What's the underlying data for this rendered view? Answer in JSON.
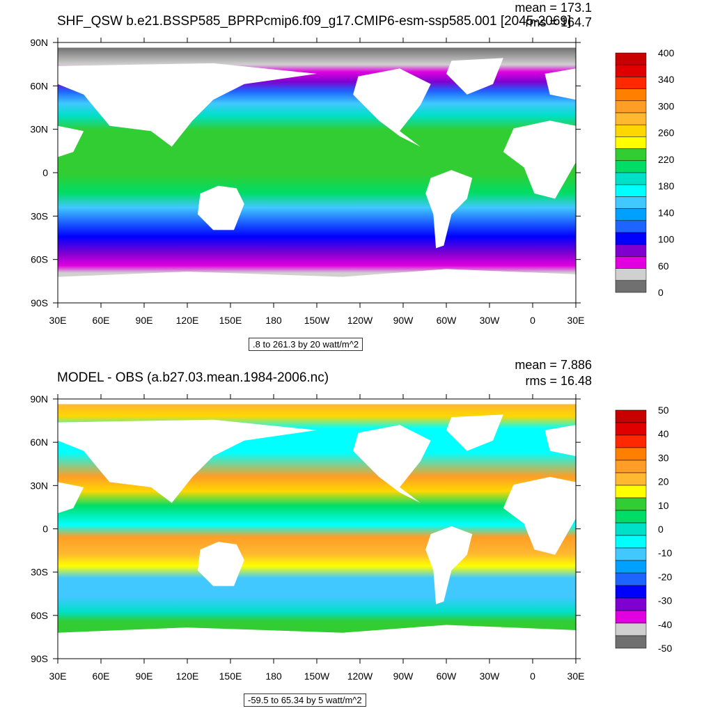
{
  "panel1": {
    "title": "SHF_QSW b.e21.BSSP585_BPRPcmip6.f09_g17.CMIP6-esm-ssp585.001 [2045-2069]",
    "mean": "mean = 173.1",
    "rms": "rms = 164.7",
    "info": ".8 to 261.3 by 20 watt/m^2",
    "colorbar_labels": [
      "400",
      "340",
      "300",
      "260",
      "220",
      "180",
      "140",
      "100",
      "60",
      "0"
    ],
    "colorbar_colors": [
      "#c80000",
      "#e00000",
      "#ff2800",
      "#ff8000",
      "#ff9e26",
      "#ffb830",
      "#ffd700",
      "#ffff00",
      "#32cd32",
      "#00dd66",
      "#00e0c8",
      "#00ffff",
      "#40c8ff",
      "#00a0ff",
      "#1e64ff",
      "#0000ff",
      "#8000d0",
      "#e000e0",
      "#d0d0d0",
      "#707070"
    ]
  },
  "panel2": {
    "title": "MODEL - OBS (a.b27.03.mean.1984-2006.nc)",
    "mean": "mean = 7.886",
    "rms": "rms = 16.48",
    "info": "-59.5 to 65.34 by 5 watt/m^2",
    "colorbar_labels": [
      "50",
      "40",
      "30",
      "20",
      "10",
      "0",
      "-10",
      "-20",
      "-30",
      "-40",
      "-50"
    ],
    "colorbar_colors": [
      "#c80000",
      "#e00000",
      "#ff2800",
      "#ff8000",
      "#ff9e26",
      "#ffb830",
      "#ffff00",
      "#32cd32",
      "#00dd66",
      "#00e0c8",
      "#00ffff",
      "#40c8ff",
      "#00a0ff",
      "#1e64ff",
      "#0000ff",
      "#8000d0",
      "#e000e0",
      "#d0d0d0",
      "#707070"
    ]
  },
  "axes": {
    "lon_labels": [
      "30E",
      "60E",
      "90E",
      "120E",
      "150E",
      "180",
      "150W",
      "120W",
      "90W",
      "60W",
      "30W",
      "0",
      "30E"
    ],
    "lat_labels": [
      "90N",
      "60N",
      "30N",
      "0",
      "30S",
      "60S",
      "90S"
    ]
  }
}
